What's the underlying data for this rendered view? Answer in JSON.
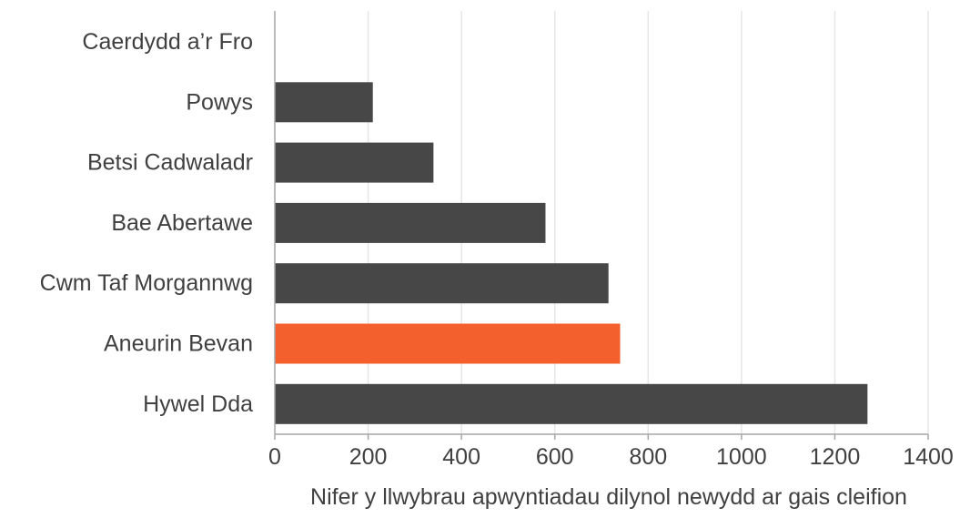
{
  "chart_data": {
    "type": "bar",
    "orientation": "horizontal",
    "categories": [
      "Caerdydd a’r Fro",
      "Powys",
      "Betsi Cadwaladr",
      "Bae Abertawe",
      "Cwm Taf Morgannwg",
      "Aneurin Bevan",
      "Hywel Dda"
    ],
    "values": [
      0,
      210,
      340,
      580,
      715,
      740,
      1270
    ],
    "highlight_category": "Aneurin Bevan",
    "xlabel": "Nifer y llwybrau apwyntiadau dilynol newydd ar gais cleifion",
    "xlim": [
      0,
      1400
    ],
    "xticks": [
      0,
      200,
      400,
      600,
      800,
      1000,
      1200,
      1400
    ],
    "grid": "vertical",
    "legend": "none",
    "colors": {
      "bar": "#474747",
      "highlight": "#f4602d",
      "grid": "#e6e6e6",
      "axis": "#a6a6a6"
    }
  }
}
